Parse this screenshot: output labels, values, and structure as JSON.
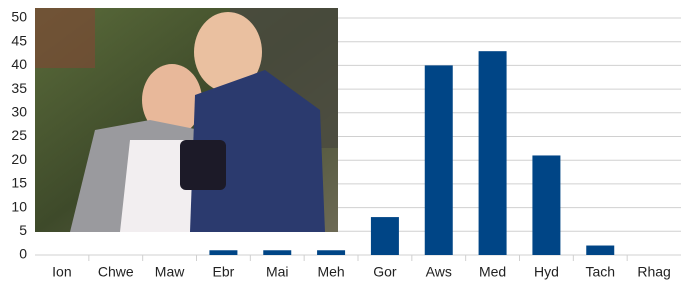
{
  "chart_data": {
    "type": "bar",
    "categories": [
      "Ion",
      "Chwe",
      "Maw",
      "Ebr",
      "Mai",
      "Meh",
      "Gor",
      "Aws",
      "Med",
      "Hyd",
      "Tach",
      "Rhag"
    ],
    "values": [
      0,
      0,
      0,
      1,
      1,
      1,
      8,
      40,
      43,
      21,
      2,
      0
    ],
    "color": "#004586",
    "ylim": [
      0,
      50
    ],
    "yticks": [
      0,
      5,
      10,
      15,
      20,
      25,
      30,
      35,
      40,
      45,
      50
    ],
    "grid": true
  }
}
